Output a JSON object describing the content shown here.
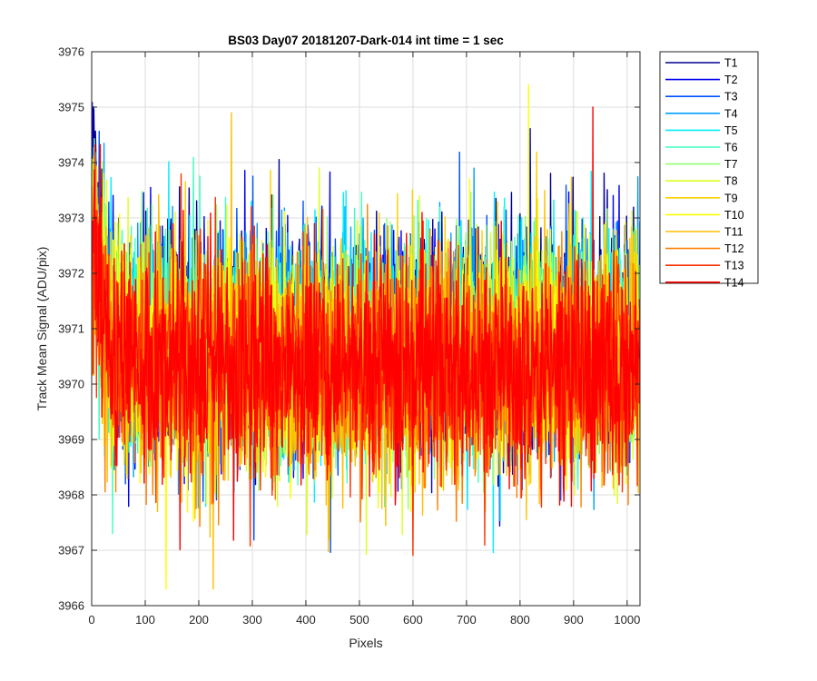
{
  "chart_data": {
    "type": "line",
    "title": "BS03 Day07 20181207-Dark-014 int time = 1 sec",
    "xlabel": "Pixels",
    "ylabel": "Track Mean Signal (ADU/pix)",
    "xlim": [
      0,
      1024
    ],
    "ylim": [
      3966,
      3976
    ],
    "xticks": [
      0,
      100,
      200,
      300,
      400,
      500,
      600,
      700,
      800,
      900,
      1000
    ],
    "yticks": [
      3966,
      3967,
      3968,
      3969,
      3970,
      3971,
      3972,
      3973,
      3974,
      3975,
      3976
    ],
    "grid": true,
    "legend_position": "outside-top-right",
    "n_points": 1024,
    "noise_std": 1.0,
    "series": [
      {
        "name": "T1",
        "color": "#00008F",
        "mean": 3970.9
      },
      {
        "name": "T2",
        "color": "#0000EF",
        "mean": 3970.8
      },
      {
        "name": "T3",
        "color": "#0050FF",
        "mean": 3970.8
      },
      {
        "name": "T4",
        "color": "#009FFF",
        "mean": 3970.7
      },
      {
        "name": "T5",
        "color": "#00EFFF",
        "mean": 3970.7
      },
      {
        "name": "T6",
        "color": "#40FFBF",
        "mean": 3970.6
      },
      {
        "name": "T7",
        "color": "#8FFF70",
        "mean": 3970.6
      },
      {
        "name": "T8",
        "color": "#DFFF20",
        "mean": 3970.5
      },
      {
        "name": "T9",
        "color": "#FFCF00",
        "mean": 3970.5
      },
      {
        "name": "T10",
        "color": "#FFFF00",
        "mean": 3970.5
      },
      {
        "name": "T11",
        "color": "#FFBF00",
        "mean": 3970.4
      },
      {
        "name": "T12",
        "color": "#FF7F00",
        "mean": 3970.3
      },
      {
        "name": "T13",
        "color": "#FF3000",
        "mean": 3970.3
      },
      {
        "name": "T14",
        "color": "#FF0000",
        "mean": 3970.3
      }
    ],
    "notable_peaks": [
      {
        "series": "T10",
        "x": 815,
        "y": 3975.4
      },
      {
        "series": "T14",
        "x": 935,
        "y": 3975.0
      },
      {
        "series": "T11",
        "x": 260,
        "y": 3974.9
      },
      {
        "series": "T10",
        "x": 138,
        "y": 3966.3
      },
      {
        "series": "T11",
        "x": 226,
        "y": 3966.3
      }
    ]
  }
}
